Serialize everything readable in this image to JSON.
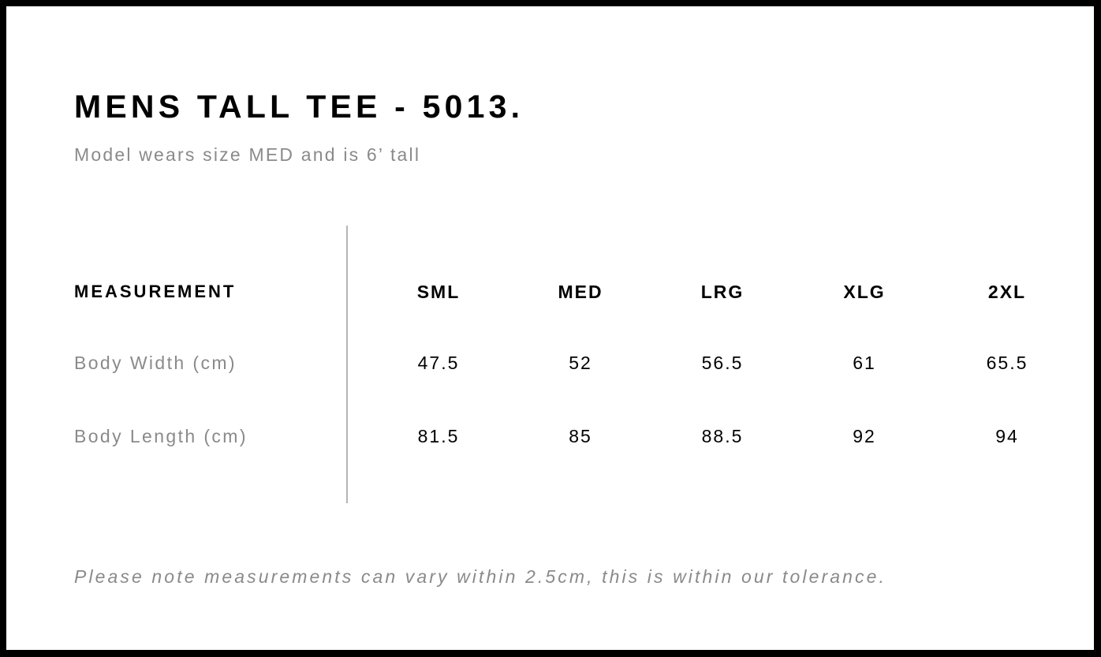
{
  "title": "MENS TALL TEE - 5013.",
  "subtitle": "Model wears size MED and is 6’ tall",
  "table": {
    "header_label": "MEASUREMENT",
    "sizes": [
      "SML",
      "MED",
      "LRG",
      "XLG",
      "2XL"
    ],
    "rows": [
      {
        "label": "Body Width (cm)",
        "values": [
          "47.5",
          "52",
          "56.5",
          "61",
          "65.5"
        ]
      },
      {
        "label": "Body Length (cm)",
        "values": [
          "81.5",
          "85",
          "88.5",
          "92",
          "94"
        ]
      }
    ]
  },
  "note": "Please note measurements can vary within 2.5cm, this is within our tolerance."
}
